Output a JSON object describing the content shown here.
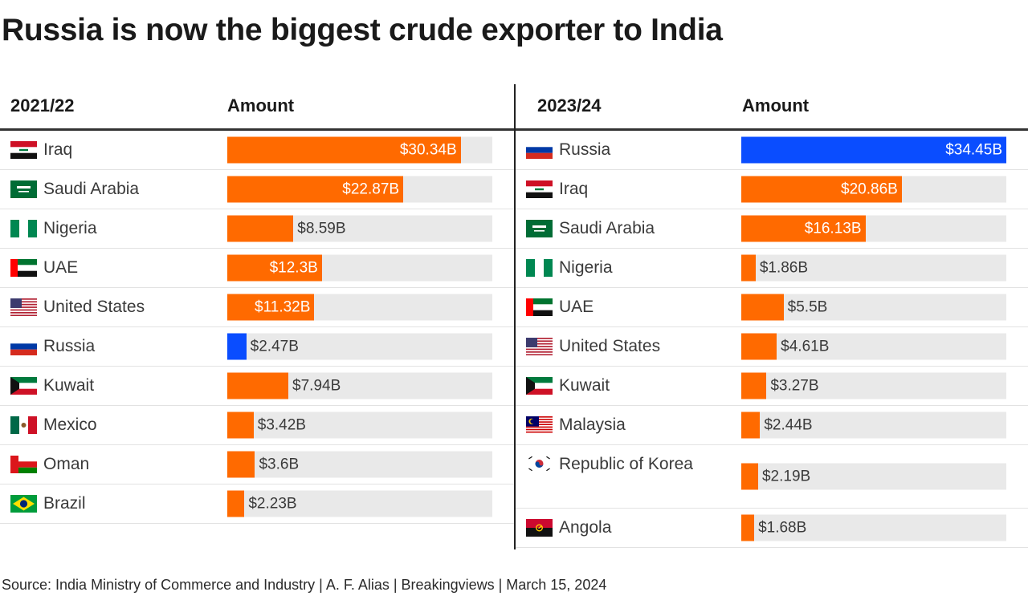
{
  "title": "Russia is now the biggest crude exporter to India",
  "source": "Source: India Ministry of Commerce and Industry | A. F. Alias | Breakingviews | March 15, 2024",
  "colors": {
    "default_bar": "#ff6a00",
    "highlight_bar": "#0a4dff",
    "track": "#e9e9e9"
  },
  "chart_data": [
    {
      "type": "bar",
      "orientation": "horizontal",
      "period_label": "2021/22",
      "amount_label": "Amount",
      "unit": "$B",
      "xlim": [
        0,
        34.45
      ],
      "rows": [
        {
          "country": "Iraq",
          "flag": "iraq-flag-icon",
          "value": 30.34,
          "label": "$30.34B",
          "highlight": false
        },
        {
          "country": "Saudi Arabia",
          "flag": "saudi-arabia-flag-icon",
          "value": 22.87,
          "label": "$22.87B",
          "highlight": false
        },
        {
          "country": "Nigeria",
          "flag": "nigeria-flag-icon",
          "value": 8.59,
          "label": "$8.59B",
          "highlight": false
        },
        {
          "country": "UAE",
          "flag": "uae-flag-icon",
          "value": 12.3,
          "label": "$12.3B",
          "highlight": false
        },
        {
          "country": "United States",
          "flag": "usa-flag-icon",
          "value": 11.32,
          "label": "$11.32B",
          "highlight": false
        },
        {
          "country": "Russia",
          "flag": "russia-flag-icon",
          "value": 2.47,
          "label": "$2.47B",
          "highlight": true
        },
        {
          "country": "Kuwait",
          "flag": "kuwait-flag-icon",
          "value": 7.94,
          "label": "$7.94B",
          "highlight": false
        },
        {
          "country": "Mexico",
          "flag": "mexico-flag-icon",
          "value": 3.42,
          "label": "$3.42B",
          "highlight": false
        },
        {
          "country": "Oman",
          "flag": "oman-flag-icon",
          "value": 3.6,
          "label": "$3.6B",
          "highlight": false
        },
        {
          "country": "Brazil",
          "flag": "brazil-flag-icon",
          "value": 2.23,
          "label": "$2.23B",
          "highlight": false
        }
      ]
    },
    {
      "type": "bar",
      "orientation": "horizontal",
      "period_label": "2023/24",
      "amount_label": "Amount",
      "unit": "$B",
      "xlim": [
        0,
        34.45
      ],
      "rows": [
        {
          "country": "Russia",
          "flag": "russia-flag-icon",
          "value": 34.45,
          "label": "$34.45B",
          "highlight": true
        },
        {
          "country": "Iraq",
          "flag": "iraq-flag-icon",
          "value": 20.86,
          "label": "$20.86B",
          "highlight": false
        },
        {
          "country": "Saudi Arabia",
          "flag": "saudi-arabia-flag-icon",
          "value": 16.13,
          "label": "$16.13B",
          "highlight": false
        },
        {
          "country": "Nigeria",
          "flag": "nigeria-flag-icon",
          "value": 1.86,
          "label": "$1.86B",
          "highlight": false
        },
        {
          "country": "UAE",
          "flag": "uae-flag-icon",
          "value": 5.5,
          "label": "$5.5B",
          "highlight": false
        },
        {
          "country": "United States",
          "flag": "usa-flag-icon",
          "value": 4.61,
          "label": "$4.61B",
          "highlight": false
        },
        {
          "country": "Kuwait",
          "flag": "kuwait-flag-icon",
          "value": 3.27,
          "label": "$3.27B",
          "highlight": false
        },
        {
          "country": "Malaysia",
          "flag": "malaysia-flag-icon",
          "value": 2.44,
          "label": "$2.44B",
          "highlight": false
        },
        {
          "country": "Republic of Korea",
          "flag": "south-korea-flag-icon",
          "value": 2.19,
          "label": "$2.19B",
          "highlight": false
        },
        {
          "country": "Angola",
          "flag": "angola-flag-icon",
          "value": 1.68,
          "label": "$1.68B",
          "highlight": false
        }
      ]
    }
  ]
}
